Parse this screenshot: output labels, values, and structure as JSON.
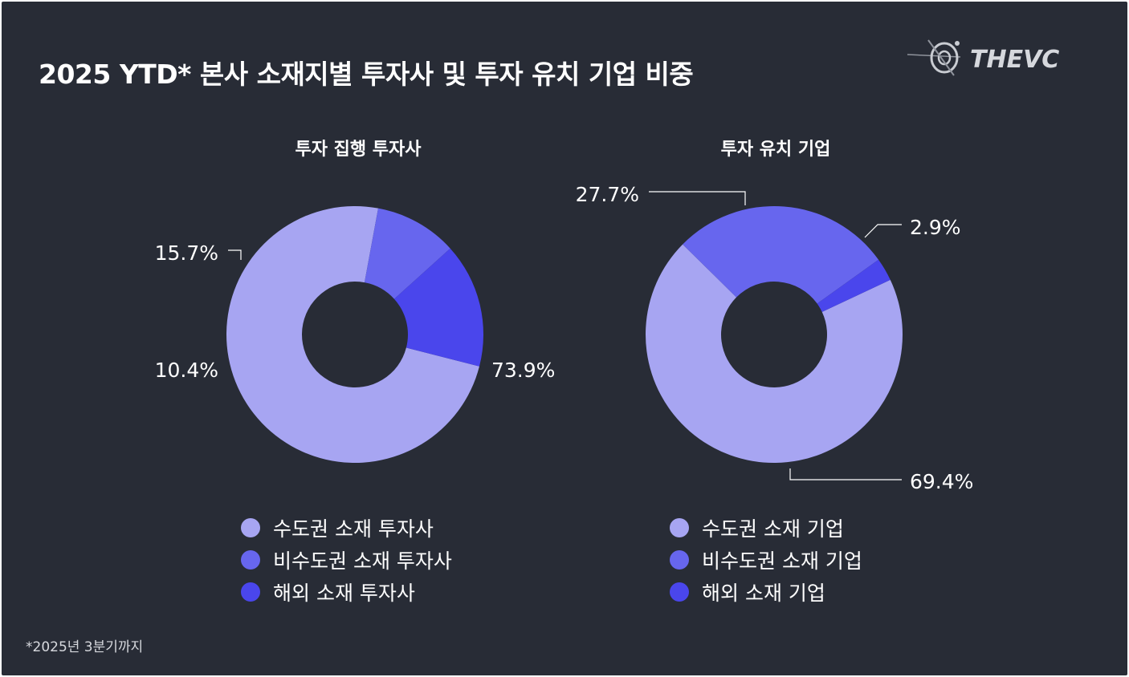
{
  "header": {
    "title": "2025 YTD* 본사 소재지별 투자사 및 투자 유치 기업 비중",
    "logo_text": "THEVC"
  },
  "footnote": "*2025년 3분기까지",
  "colors": {
    "background": "#282c36",
    "metro": "#a7a5f2",
    "non_metro": "#6766ee",
    "overseas": "#4a46ec",
    "text": "#ffffff",
    "leader_line": "#ffffff"
  },
  "chart_data": [
    {
      "type": "pie",
      "title": "투자 집행 투자사",
      "categories": [
        "수도권 소재 투자사",
        "비수도권 소재 투자사",
        "해외 소재 투자사"
      ],
      "values": [
        73.9,
        10.4,
        15.7
      ],
      "value_labels": [
        "73.9%",
        "10.4%",
        "15.7%"
      ],
      "colors": [
        "#a7a5f2",
        "#6766ee",
        "#4a46ec"
      ],
      "donut": true,
      "legend": "bottom"
    },
    {
      "type": "pie",
      "title": "투자 유치 기업",
      "categories": [
        "수도권 소재 기업",
        "비수도권 소재 기업",
        "해외 소재 기업"
      ],
      "values": [
        69.4,
        27.7,
        2.9
      ],
      "value_labels": [
        "69.4%",
        "27.7%",
        "2.9%"
      ],
      "colors": [
        "#a7a5f2",
        "#6766ee",
        "#4a46ec"
      ],
      "donut": true,
      "legend": "bottom"
    }
  ]
}
